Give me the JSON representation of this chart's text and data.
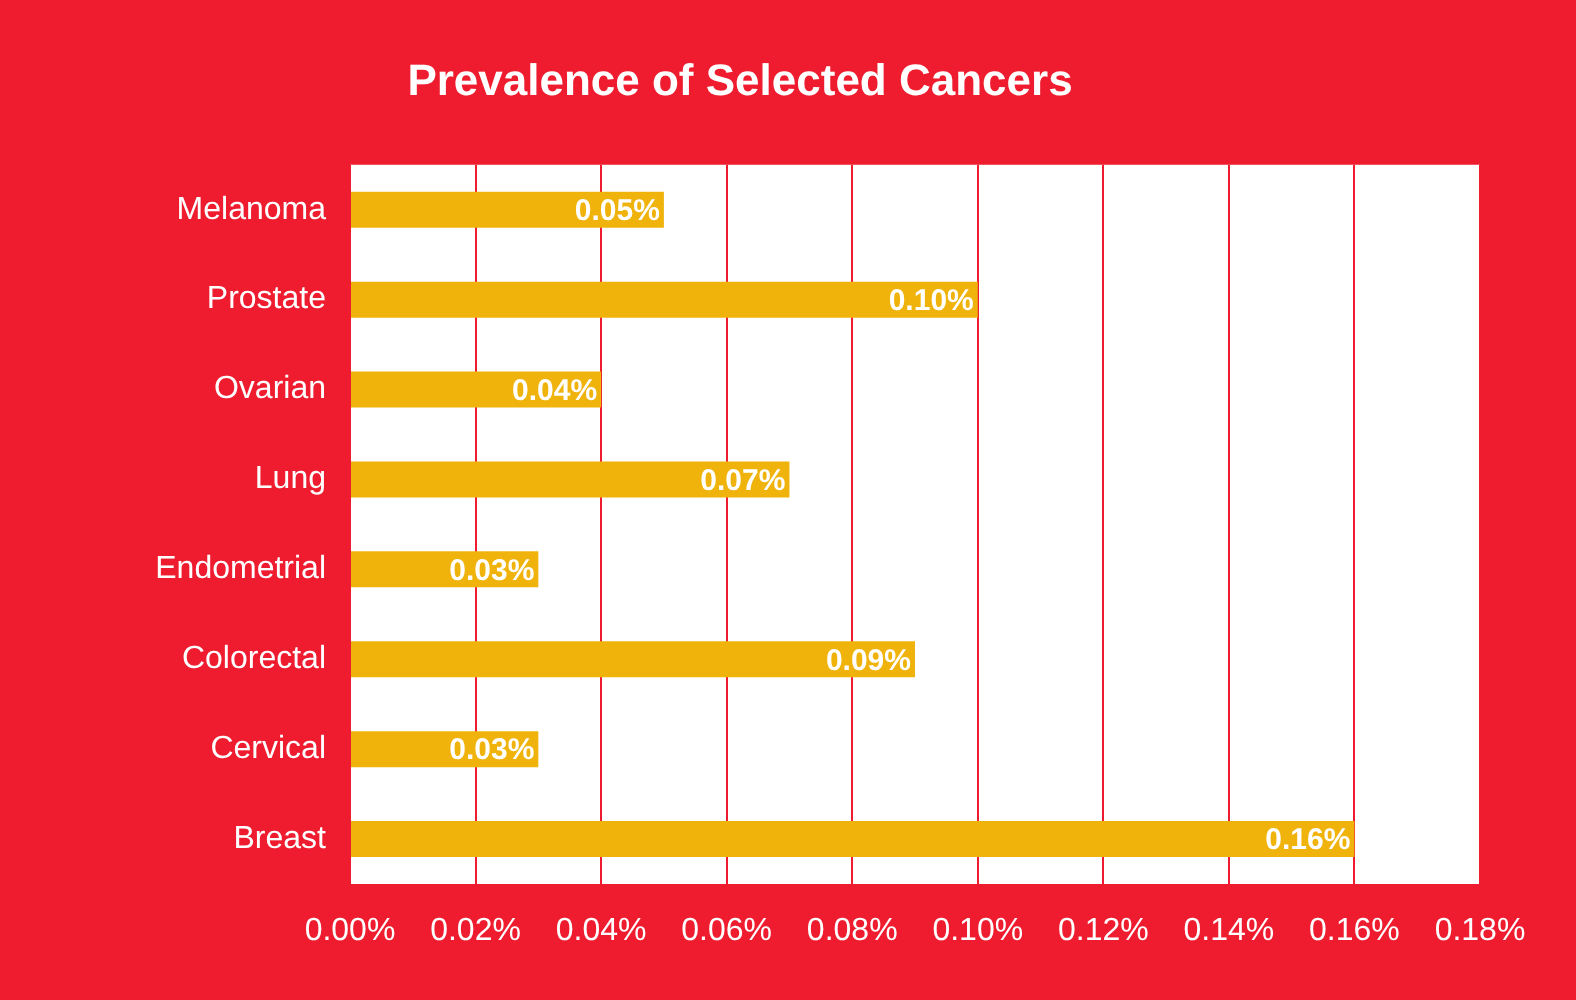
{
  "chart_data": {
    "type": "bar",
    "orientation": "horizontal",
    "title": "Prevalence of Selected Cancers",
    "categories": [
      "Melanoma",
      "Prostate",
      "Ovarian",
      "Lung",
      "Endometrial",
      "Colorectal",
      "Cervical",
      "Breast"
    ],
    "values": [
      0.05,
      0.1,
      0.04,
      0.07,
      0.03,
      0.09,
      0.03,
      0.16
    ],
    "color": "#f0b30c",
    "value_labels": [
      "0.05%",
      "0.10%",
      "0.04%",
      "0.07%",
      "0.03%",
      "0.09%",
      "0.03%",
      "0.16%"
    ],
    "xlim": [
      0,
      0.18
    ],
    "xticks": [
      {
        "value": 0,
        "label": "0.00%"
      },
      {
        "value": 0.02,
        "label": "0.02%"
      },
      {
        "value": 0.04,
        "label": "0.04%"
      },
      {
        "value": 0.06,
        "label": "0.06%"
      },
      {
        "value": 0.08,
        "label": "0.08%"
      },
      {
        "value": 0.1,
        "label": "0.10%"
      },
      {
        "value": 0.12,
        "label": "0.12%"
      },
      {
        "value": 0.14,
        "label": "0.14%"
      },
      {
        "value": 0.16,
        "label": "0.16%"
      },
      {
        "value": 0.18,
        "label": "0.18%"
      }
    ],
    "grid": "x",
    "legend": false
  }
}
